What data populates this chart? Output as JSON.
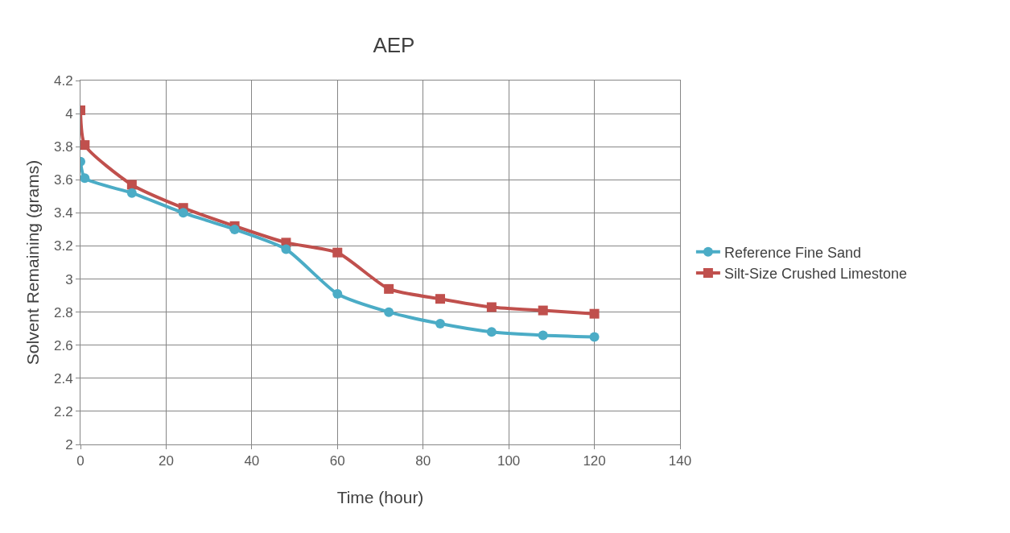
{
  "chart_data": {
    "type": "line",
    "title": "AEP",
    "xlabel": "Time (hour)",
    "ylabel": "Solvent Remaining (grams)",
    "x": [
      0,
      1,
      12,
      24,
      36,
      48,
      60,
      72,
      84,
      96,
      108,
      120
    ],
    "series": [
      {
        "name": "Reference Fine Sand",
        "color": "#4bacc6",
        "marker": "circle",
        "values": [
          3.71,
          3.61,
          3.52,
          3.4,
          3.3,
          3.18,
          2.91,
          2.8,
          2.73,
          2.68,
          2.66,
          2.65
        ]
      },
      {
        "name": "Silt-Size Crushed Limestone",
        "color": "#c0504d",
        "marker": "square",
        "values": [
          4.02,
          3.81,
          3.57,
          3.43,
          3.32,
          3.22,
          3.16,
          2.94,
          2.88,
          2.83,
          2.81,
          2.79
        ]
      }
    ],
    "xlim": [
      0,
      140
    ],
    "xticks": [
      0,
      20,
      40,
      60,
      80,
      100,
      120,
      140
    ],
    "ylim": [
      2,
      4.2
    ],
    "yticks": [
      2,
      {
        "value": 2.2,
        "label": "2.2"
      },
      {
        "value": 2.4,
        "label": "2.4"
      },
      {
        "value": 2.6,
        "label": "2.6"
      },
      {
        "value": 2.8,
        "label": "2.8"
      },
      3,
      {
        "value": 3.2,
        "label": "3.2"
      },
      {
        "value": 3.4,
        "label": "3.4"
      },
      {
        "value": 3.6,
        "label": "3.6"
      },
      {
        "value": 3.8,
        "label": "3.8"
      },
      4,
      {
        "value": 4.2,
        "label": "4.2"
      }
    ],
    "grid": true,
    "legend": "right",
    "line_style": "solid"
  }
}
